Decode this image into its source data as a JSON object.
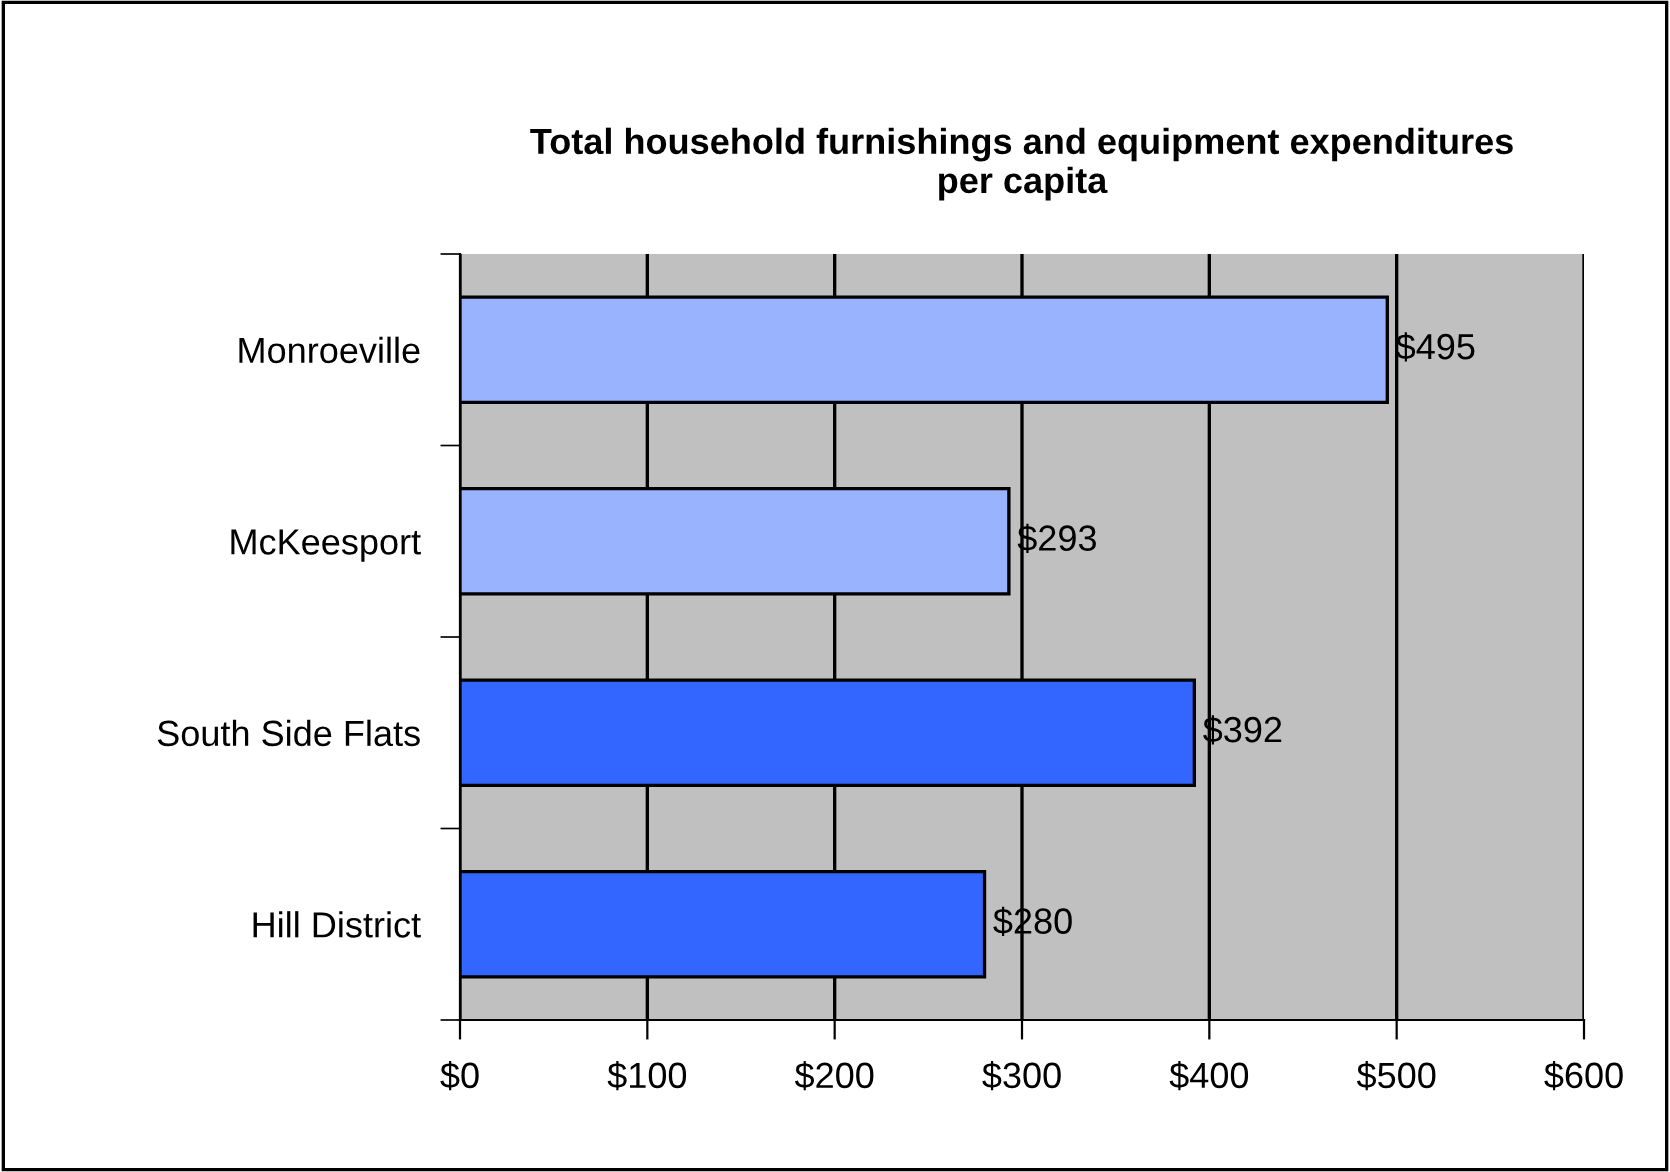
{
  "chart_data": {
    "type": "bar",
    "orientation": "horizontal",
    "title": "Total household furnishings and equipment expenditures\nper capita",
    "categories": [
      "Monroeville",
      "McKeesport",
      "South Side Flats",
      "Hill District"
    ],
    "values": [
      495,
      293,
      392,
      280
    ],
    "colors": [
      "#99b3ff",
      "#99b3ff",
      "#3366ff",
      "#3366ff"
    ],
    "value_labels": [
      "$495",
      "$293",
      "$392",
      "$280"
    ],
    "xlim": [
      0,
      600
    ],
    "xticks": [
      {
        "value": 0,
        "label": "$0"
      },
      {
        "value": 100,
        "label": "$100"
      },
      {
        "value": 200,
        "label": "$200"
      },
      {
        "value": 300,
        "label": "$300"
      },
      {
        "value": 400,
        "label": "$400"
      },
      {
        "value": 500,
        "label": "$500"
      },
      {
        "value": 600,
        "label": "$600"
      }
    ],
    "grid": "x",
    "legend": false
  }
}
